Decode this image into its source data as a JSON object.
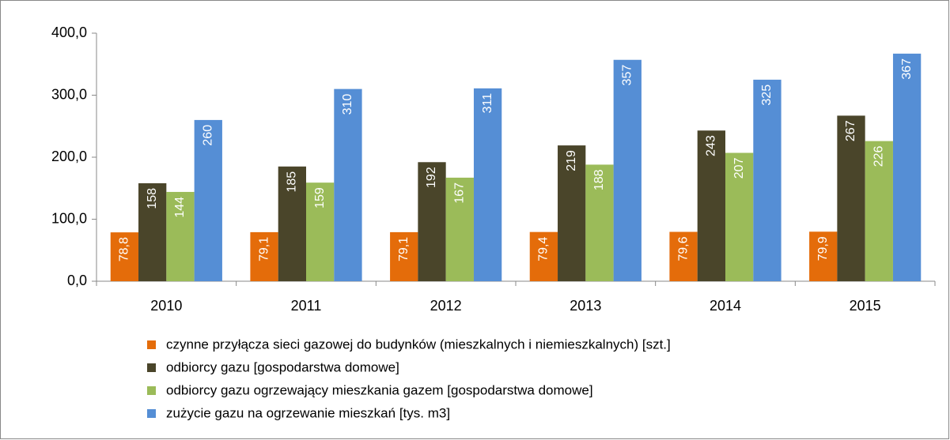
{
  "chart_data": {
    "type": "bar",
    "categories": [
      "2010",
      "2011",
      "2012",
      "2013",
      "2014",
      "2015"
    ],
    "series": [
      {
        "name": "czynne przyłącza sieci gazowej do budynków (mieszkalnych i niemieszkalnych) [szt.]",
        "color": "#e46c0a",
        "values": [
          78.8,
          79.1,
          79.1,
          79.4,
          79.6,
          79.9
        ],
        "value_labels": [
          "78,8",
          "79,1",
          "79,1",
          "79,4",
          "79,6",
          "79,9"
        ]
      },
      {
        "name": "odbiorcy gazu [gospodarstwa domowe]",
        "color": "#4a452a",
        "values": [
          158,
          185,
          192,
          219,
          243,
          267
        ]
      },
      {
        "name": "odbiorcy gazu ogrzewający mieszkania gazem [gospodarstwa domowe]",
        "color": "#9bbb59",
        "values": [
          144,
          159,
          167,
          188,
          207,
          226
        ]
      },
      {
        "name": "zużycie gazu na ogrzewanie mieszkań [tys. m3]",
        "color": "#558ed5",
        "values": [
          260,
          310,
          311,
          357,
          325,
          367
        ]
      }
    ],
    "ylim": [
      0,
      400
    ],
    "yticks": [
      {
        "value": 0,
        "label": "0,0"
      },
      {
        "value": 100,
        "label": "100,0"
      },
      {
        "value": 200,
        "label": "200,0"
      },
      {
        "value": 300,
        "label": "300,0"
      },
      {
        "value": 400,
        "label": "400,0"
      }
    ],
    "grid": false
  }
}
